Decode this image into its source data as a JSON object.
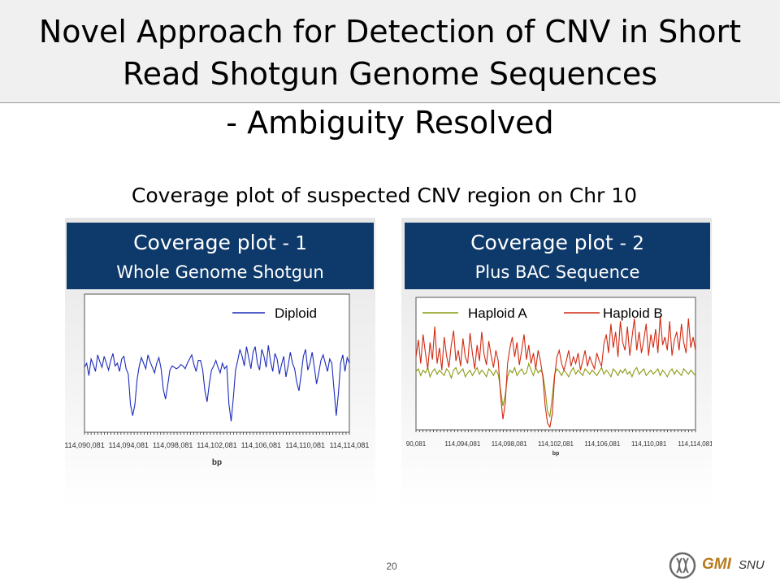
{
  "title": {
    "line1": "Novel Approach for Detection of CNV in Short",
    "line2": "Read Shotgun Genome Sequences"
  },
  "subtitle": "- Ambiguity Resolved",
  "caption": "Coverage plot of suspected CNV region on Chr 10",
  "panels": [
    {
      "title_main": "Coverage plot",
      "title_num": "- 1",
      "subtitle": "Whole Genome Shotgun"
    },
    {
      "title_main": "Coverage plot",
      "title_num": "- 2",
      "subtitle": "Plus BAC Sequence"
    }
  ],
  "chart_data": [
    {
      "type": "line",
      "xlabel": "bp",
      "ylabel": "",
      "x_tick_labels": [
        "114,090,081",
        "114,094,081",
        "114,098,081",
        "114,102,081",
        "114,106,081",
        "114,110,081",
        "114,114,081"
      ],
      "legend_position": "top-right",
      "series": [
        {
          "name": "Diploid",
          "color": "#1c2bbb",
          "values": [
            0.47,
            0.5,
            0.41,
            0.53,
            0.49,
            0.44,
            0.56,
            0.51,
            0.47,
            0.55,
            0.5,
            0.45,
            0.52,
            0.57,
            0.48,
            0.5,
            0.44,
            0.53,
            0.55,
            0.46,
            0.42,
            0.2,
            0.12,
            0.2,
            0.38,
            0.48,
            0.54,
            0.5,
            0.46,
            0.56,
            0.51,
            0.47,
            0.43,
            0.5,
            0.54,
            0.46,
            0.31,
            0.24,
            0.34,
            0.45,
            0.48,
            0.47,
            0.46,
            0.47,
            0.49,
            0.48,
            0.46,
            0.5,
            0.53,
            0.56,
            0.49,
            0.44,
            0.52,
            0.52,
            0.45,
            0.3,
            0.22,
            0.35,
            0.45,
            0.48,
            0.52,
            0.47,
            0.43,
            0.5,
            0.46,
            0.48,
            0.2,
            0.08,
            0.25,
            0.45,
            0.52,
            0.6,
            0.55,
            0.48,
            0.62,
            0.54,
            0.46,
            0.58,
            0.62,
            0.5,
            0.45,
            0.6,
            0.55,
            0.47,
            0.63,
            0.51,
            0.44,
            0.57,
            0.53,
            0.42,
            0.49,
            0.55,
            0.4,
            0.48,
            0.58,
            0.5,
            0.46,
            0.36,
            0.3,
            0.42,
            0.55,
            0.6,
            0.45,
            0.5,
            0.58,
            0.47,
            0.35,
            0.43,
            0.52,
            0.56,
            0.5,
            0.44,
            0.53,
            0.5,
            0.31,
            0.12,
            0.28,
            0.5,
            0.56,
            0.44,
            0.54,
            0.5
          ]
        }
      ]
    },
    {
      "type": "line",
      "xlabel": "bp",
      "ylabel": "",
      "x_tick_labels": [
        "90,081",
        "114,094,081",
        "114,098,081",
        "114,102,081",
        "114,106,081",
        "114,110,081",
        "114,114,081"
      ],
      "legend_position": "top",
      "series": [
        {
          "name": "Haploid A",
          "color": "#8b9a12",
          "values": [
            0.44,
            0.46,
            0.41,
            0.45,
            0.43,
            0.47,
            0.4,
            0.44,
            0.46,
            0.42,
            0.45,
            0.43,
            0.41,
            0.46,
            0.44,
            0.39,
            0.45,
            0.47,
            0.42,
            0.44,
            0.46,
            0.4,
            0.43,
            0.45,
            0.41,
            0.44,
            0.47,
            0.42,
            0.45,
            0.43,
            0.4,
            0.46,
            0.44,
            0.41,
            0.45,
            0.42,
            0.3,
            0.18,
            0.26,
            0.4,
            0.45,
            0.43,
            0.47,
            0.41,
            0.44,
            0.46,
            0.42,
            0.43,
            0.5,
            0.45,
            0.41,
            0.47,
            0.43,
            0.45,
            0.42,
            0.3,
            0.14,
            0.1,
            0.25,
            0.42,
            0.46,
            0.44,
            0.41,
            0.45,
            0.43,
            0.4,
            0.44,
            0.47,
            0.42,
            0.45,
            0.43,
            0.41,
            0.46,
            0.44,
            0.42,
            0.45,
            0.43,
            0.41,
            0.44,
            0.47,
            0.42,
            0.45,
            0.43,
            0.4,
            0.46,
            0.44,
            0.41,
            0.45,
            0.43,
            0.46,
            0.42,
            0.44,
            0.4,
            0.45,
            0.47,
            0.42,
            0.44,
            0.46,
            0.41,
            0.43,
            0.45,
            0.42,
            0.44,
            0.46,
            0.41,
            0.45,
            0.43,
            0.4,
            0.44,
            0.46,
            0.42,
            0.45,
            0.43,
            0.41,
            0.46,
            0.44,
            0.42,
            0.45,
            0.43,
            0.41
          ]
        },
        {
          "name": "Haploid B",
          "color": "#d22a12",
          "values": [
            0.55,
            0.68,
            0.5,
            0.72,
            0.58,
            0.46,
            0.66,
            0.53,
            0.78,
            0.5,
            0.62,
            0.45,
            0.7,
            0.56,
            0.47,
            0.64,
            0.75,
            0.52,
            0.6,
            0.48,
            0.69,
            0.55,
            0.5,
            0.73,
            0.58,
            0.46,
            0.64,
            0.52,
            0.74,
            0.57,
            0.49,
            0.67,
            0.56,
            0.47,
            0.6,
            0.52,
            0.26,
            0.08,
            0.2,
            0.5,
            0.62,
            0.7,
            0.55,
            0.66,
            0.49,
            0.6,
            0.72,
            0.53,
            0.64,
            0.5,
            0.58,
            0.46,
            0.6,
            0.52,
            0.4,
            0.18,
            0.05,
            0.02,
            0.12,
            0.4,
            0.55,
            0.6,
            0.5,
            0.45,
            0.52,
            0.6,
            0.48,
            0.55,
            0.5,
            0.58,
            0.45,
            0.52,
            0.6,
            0.48,
            0.55,
            0.5,
            0.46,
            0.58,
            0.52,
            0.48,
            0.65,
            0.72,
            0.58,
            0.8,
            0.62,
            0.74,
            0.55,
            0.82,
            0.66,
            0.6,
            0.78,
            0.56,
            0.7,
            0.84,
            0.6,
            0.74,
            0.58,
            0.68,
            0.8,
            0.56,
            0.72,
            0.62,
            0.76,
            0.58,
            0.86,
            0.64,
            0.7,
            0.6,
            0.82,
            0.56,
            0.68,
            0.74,
            0.6,
            0.8,
            0.66,
            0.58,
            0.84,
            0.62,
            0.7,
            0.6
          ]
        }
      ]
    }
  ],
  "page_number": "20",
  "logo": {
    "text_main": "GMI",
    "text_sub": "SNU",
    "color": "#b87a1c"
  }
}
